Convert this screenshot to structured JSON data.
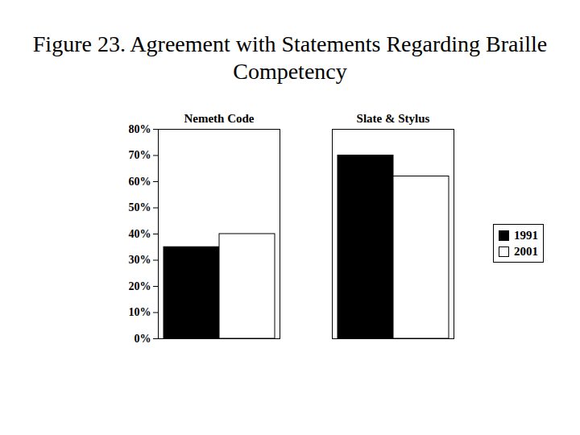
{
  "chart_data": {
    "type": "bar",
    "title": "Figure 23. Agreement with Statements Regarding Braille Competency",
    "categories": [
      "Nemeth Code",
      "Slate & Stylus"
    ],
    "series": [
      {
        "name": "1991",
        "color": "#000000",
        "values": [
          35,
          70
        ]
      },
      {
        "name": "2001",
        "color": "#ffffff",
        "values": [
          40,
          62
        ]
      }
    ],
    "ylim": [
      0,
      80
    ],
    "yticks": [
      {
        "value": 0,
        "label": "0%"
      },
      {
        "value": 10,
        "label": "10%"
      },
      {
        "value": 20,
        "label": "20%"
      },
      {
        "value": 30,
        "label": "30%"
      },
      {
        "value": 40,
        "label": "40%"
      },
      {
        "value": 50,
        "label": "50%"
      },
      {
        "value": 60,
        "label": "60%"
      },
      {
        "value": 70,
        "label": "70%"
      },
      {
        "value": 80,
        "label": "80%"
      }
    ],
    "grid": false,
    "legend": "right"
  }
}
